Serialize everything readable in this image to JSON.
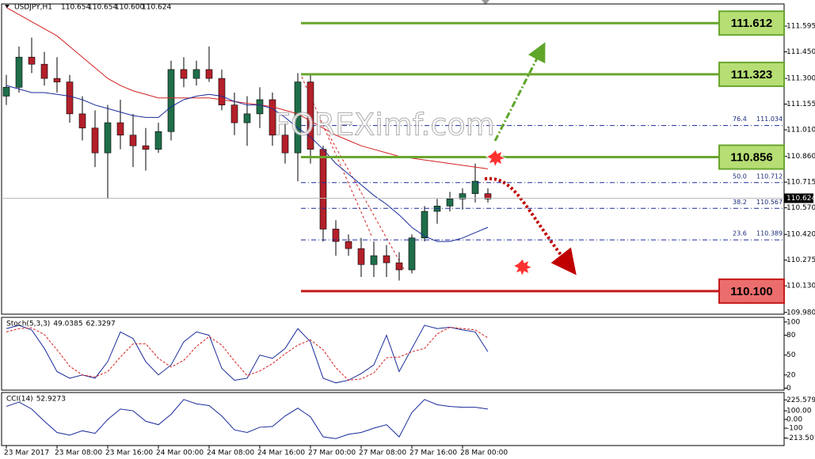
{
  "chart_data": [
    {
      "type": "candlestick",
      "symbol": "USDJPY,H1",
      "quote": [
        110.654,
        110.654,
        {
          "value": 110.6,
          "label": "110.600"
        },
        110.624
      ],
      "categories": [
        "23 Mar 2017",
        null,
        null,
        null,
        "23 Mar 08:00",
        null,
        null,
        null,
        "23 Mar 16:00",
        null,
        null,
        null,
        "24 Mar 00:00",
        null,
        null,
        null,
        "24 Mar 08:00",
        null,
        null,
        null,
        "24 Mar 16:00",
        null,
        null,
        null,
        "27 Mar 00:00",
        null,
        null,
        null,
        "27 Mar 08:00",
        null,
        null,
        null,
        "27 Mar 16:00",
        null,
        null,
        null,
        "28 Mar 00:00",
        null,
        null
      ],
      "open": [
        111.2,
        111.25,
        111.42,
        111.38,
        111.3,
        111.28,
        111.1,
        111.02,
        110.88,
        111.05,
        110.98,
        110.92,
        110.9,
        111.0,
        111.35,
        111.3,
        111.35,
        111.3,
        111.15,
        111.05,
        111.1,
        111.18,
        110.98,
        110.88,
        111.28,
        110.9,
        110.45,
        110.38,
        110.34,
        110.25,
        110.3,
        110.26,
        110.22,
        110.4,
        110.55,
        110.58,
        110.62,
        110.65,
        110.65
      ],
      "high": [
        111.32,
        111.48,
        111.53,
        111.45,
        111.42,
        111.32,
        111.2,
        111.12,
        111.15,
        111.18,
        111.1,
        111.02,
        111.05,
        111.4,
        111.42,
        111.4,
        111.48,
        111.35,
        111.22,
        111.2,
        111.25,
        111.22,
        111.05,
        111.33,
        111.32,
        110.92,
        110.5,
        110.42,
        110.4,
        110.38,
        110.36,
        110.32,
        110.42,
        110.58,
        110.62,
        110.66,
        110.68,
        110.82,
        110.68
      ],
      "low": [
        111.15,
        111.22,
        111.33,
        111.26,
        111.22,
        111.05,
        110.95,
        110.8,
        110.62,
        110.9,
        110.8,
        110.78,
        110.88,
        110.95,
        111.25,
        111.26,
        111.28,
        111.12,
        110.98,
        110.92,
        111.02,
        110.92,
        110.82,
        110.72,
        110.82,
        110.38,
        110.3,
        110.3,
        110.18,
        110.18,
        110.18,
        110.16,
        110.2,
        110.38,
        110.48,
        110.55,
        110.56,
        110.6,
        110.6
      ],
      "close": [
        111.25,
        111.42,
        111.38,
        111.3,
        111.28,
        111.1,
        111.02,
        110.88,
        111.05,
        110.98,
        110.92,
        110.9,
        111.0,
        111.35,
        111.3,
        111.35,
        111.3,
        111.15,
        111.05,
        111.1,
        111.18,
        110.98,
        110.88,
        111.28,
        110.9,
        110.45,
        110.38,
        110.34,
        110.25,
        110.3,
        110.26,
        110.22,
        110.4,
        110.55,
        110.58,
        110.62,
        110.65,
        110.72,
        110.62
      ],
      "up_color": "#1f6e4a",
      "down_color": "#b3202a",
      "lines": [
        {
          "color": "#d42020",
          "values": [
            111.7,
            111.66,
            111.62,
            111.58,
            111.54,
            111.48,
            111.42,
            111.36,
            111.3,
            111.26,
            111.23,
            111.21,
            111.19,
            111.19,
            111.19,
            111.19,
            111.19,
            111.18,
            111.17,
            111.16,
            111.15,
            111.14,
            111.12,
            111.1,
            111.06,
            111.02,
            110.98,
            110.95,
            110.92,
            110.9,
            110.88,
            110.86,
            110.85,
            110.84,
            110.83,
            110.82,
            110.81,
            110.8,
            110.79
          ]
        },
        {
          "color": "#1a2a9a",
          "values": [
            111.26,
            111.24,
            111.22,
            111.22,
            111.21,
            111.2,
            111.18,
            111.15,
            111.13,
            111.11,
            111.09,
            111.08,
            111.08,
            111.14,
            111.18,
            111.2,
            111.21,
            111.2,
            111.17,
            111.15,
            111.15,
            111.13,
            111.08,
            111.02,
            110.97,
            110.9,
            110.82,
            110.76,
            110.7,
            110.64,
            110.59,
            110.53,
            110.46,
            110.41,
            110.38,
            110.38,
            110.4,
            110.43,
            110.46
          ]
        }
      ],
      "ylim": [
        109.97,
        111.72
      ],
      "yticks": [
        111.595,
        {
          "value": 111.45,
          "label": "111.450"
        },
        {
          "value": 111.3,
          "label": "111.300"
        },
        111.155,
        {
          "value": 111.01,
          "label": "111.010"
        },
        {
          "value": 110.86,
          "label": "110.860"
        },
        110.715,
        {
          "value": 110.57,
          "label": "110.570"
        },
        {
          "value": 110.42,
          "label": "110.420"
        },
        110.275,
        {
          "value": 110.13,
          "label": "110.130"
        },
        {
          "value": 109.98,
          "label": "109.980"
        }
      ],
      "levels": [
        {
          "price": 111.612,
          "color": "#6aa62e",
          "box": "#b6de74"
        },
        {
          "price": 111.323,
          "color": "#6aa62e",
          "box": "#b6de74"
        },
        {
          "price": 110.856,
          "color": "#6aa62e",
          "box": "#b6de74"
        },
        {
          "price": {
            "value": 110.1,
            "label": "110.100"
          },
          "color": "#c41a1a",
          "box": "#ec6d6d"
        }
      ],
      "fib_levels": [
        {
          "ratio": 76.4,
          "price": 111.034
        },
        {
          "ratio": {
            "value": 50,
            "label": "50.0"
          },
          "price": 110.712
        },
        {
          "ratio": 38.2,
          "price": 110.567
        },
        {
          "ratio": 23.6,
          "price": 110.389
        }
      ],
      "watermark": "FOREXimf.com"
    },
    {
      "type": "line",
      "label": "Stoch(5,3,3)",
      "readings": [
        49.0385,
        62.3297
      ],
      "series": [
        {
          "color": "#1a2a9a",
          "dashed": false,
          "values": [
            90,
            95,
            88,
            60,
            25,
            15,
            20,
            15,
            40,
            85,
            75,
            40,
            20,
            35,
            70,
            85,
            80,
            30,
            12,
            15,
            50,
            45,
            60,
            90,
            70,
            15,
            8,
            12,
            22,
            35,
            80,
            25,
            60,
            95,
            90,
            92,
            88,
            85,
            55
          ]
        },
        {
          "color": "#d42020",
          "dashed": true,
          "values": [
            85,
            90,
            91,
            81,
            58,
            33,
            20,
            17,
            25,
            47,
            67,
            67,
            45,
            32,
            42,
            63,
            78,
            65,
            41,
            19,
            26,
            37,
            52,
            65,
            73,
            58,
            31,
            12,
            14,
            23,
            46,
            47,
            55,
            60,
            82,
            92,
            90,
            88,
            76
          ]
        }
      ],
      "ylim": [
        -3,
        107
      ],
      "yticks": [
        100,
        80,
        50,
        20,
        0
      ]
    },
    {
      "type": "line",
      "label": "CCI(14)",
      "readings": [
        52.9273
      ],
      "series": [
        {
          "color": "#1a2a9a",
          "dashed": false,
          "values": [
            150,
            200,
            120,
            -20,
            -150,
            -180,
            -130,
            -160,
            0,
            120,
            100,
            -20,
            -60,
            60,
            230,
            180,
            160,
            40,
            -120,
            -150,
            -90,
            -80,
            40,
            130,
            30,
            -200,
            -220,
            -170,
            -150,
            -100,
            -60,
            -200,
            80,
            230,
            170,
            150,
            140,
            140,
            120
          ]
        }
      ],
      "ylim": [
        -300,
        310
      ],
      "yticks": [
        225.5793,
        {
          "value": 100,
          "label": "100.00"
        },
        {
          "value": 0,
          "label": "0.00"
        },
        -100,
        -213.5014
      ]
    }
  ]
}
